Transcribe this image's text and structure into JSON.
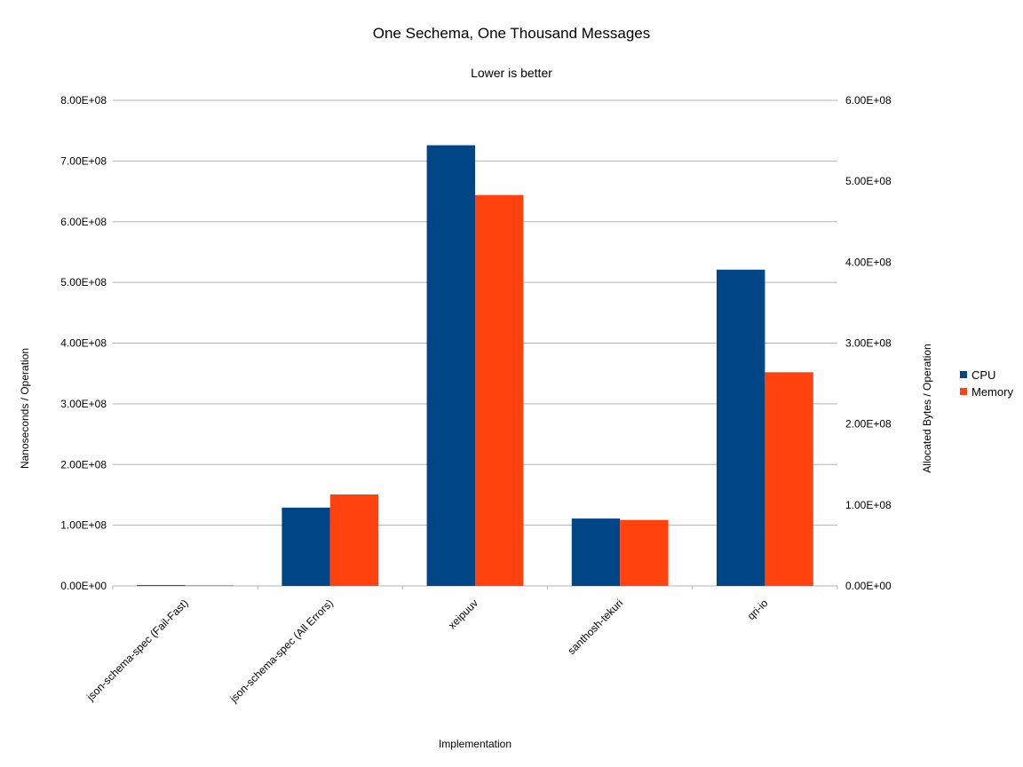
{
  "chart_data": {
    "type": "bar",
    "title": "One Sechema, One Thousand Messages",
    "subtitle": "Lower is better",
    "xlabel": "Implementation",
    "ylabel": "Nanoseconds / Operation",
    "y2label": "Allocated Bytes / Operation",
    "categories": [
      "json-schema-spec (Fail-Fast)",
      "json-schema-spec (All Errors)",
      "xeipuuv",
      "santhosh-tekuri",
      "qri-io"
    ],
    "series": [
      {
        "name": "CPU",
        "axis": "left",
        "color": "#004586",
        "values": [
          1300000,
          129000000,
          726000000,
          111000000,
          521000000
        ]
      },
      {
        "name": "Memory",
        "axis": "right",
        "color": "#ff420e",
        "values": [
          700000,
          113000000,
          483000000,
          81500000,
          264000000
        ]
      }
    ],
    "ylim": [
      0,
      800000000
    ],
    "y2lim": [
      0,
      600000000
    ],
    "y_ticks": [
      "0.00E+00",
      "1.00E+08",
      "2.00E+08",
      "3.00E+08",
      "4.00E+08",
      "5.00E+08",
      "6.00E+08",
      "7.00E+08",
      "8.00E+08"
    ],
    "y2_ticks": [
      "0.00E+00",
      "1.00E+08",
      "2.00E+08",
      "3.00E+08",
      "4.00E+08",
      "5.00E+08",
      "6.00E+08"
    ],
    "grid": true,
    "legend_position": "right"
  }
}
